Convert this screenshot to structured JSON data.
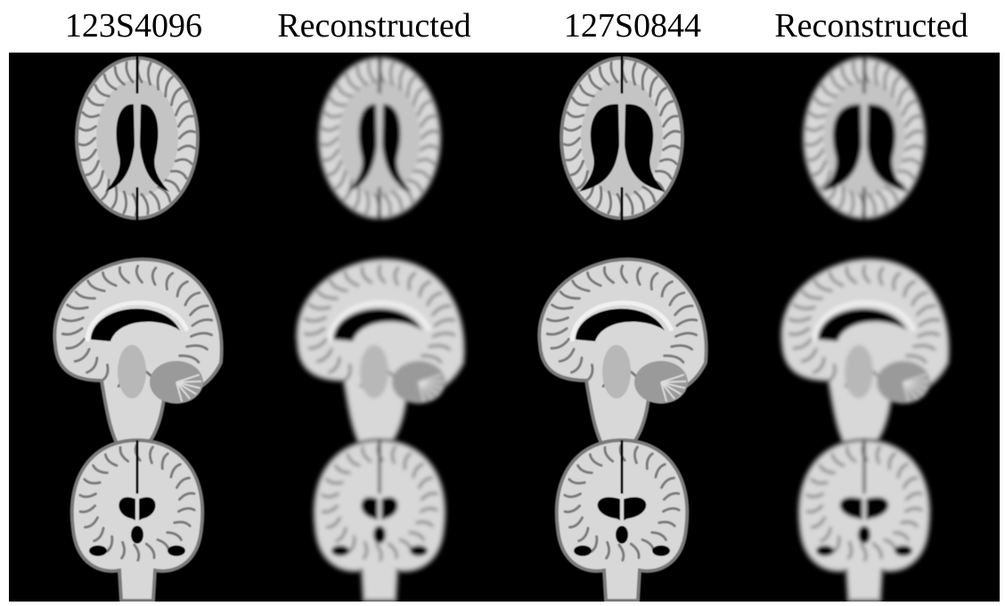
{
  "columns": [
    {
      "title": "123S4096",
      "kind": "original"
    },
    {
      "title": "Reconstructed",
      "kind": "reconstructed"
    },
    {
      "title": "127S0844",
      "kind": "original"
    },
    {
      "title": "Reconstructed",
      "kind": "reconstructed"
    }
  ],
  "rows": [
    "axial",
    "sagittal",
    "coronal"
  ],
  "colors": {
    "background": "#000000",
    "tissue_light": "#d8d8d8",
    "tissue_dark": "#7a7a7a",
    "ventricle": "#050505"
  }
}
